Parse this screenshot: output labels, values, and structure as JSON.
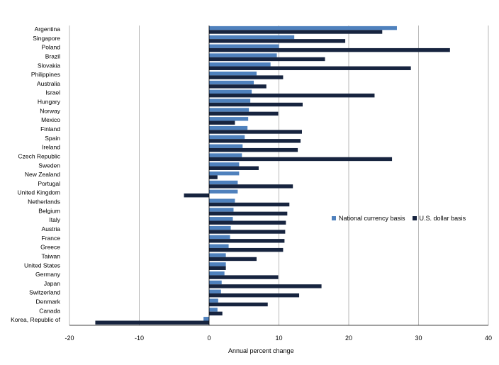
{
  "chart_data": {
    "type": "bar",
    "orientation": "horizontal",
    "categories": [
      "Argentina",
      "Singapore",
      "Poland",
      "Brazil",
      "Slovakia",
      "Philippines",
      "Australia",
      "Israel",
      "Hungary",
      "Norway",
      "Mexico",
      "Finland",
      "Spain",
      "Ireland",
      "Czech Republic",
      "Sweden",
      "New Zealand",
      "Portugal",
      "United Kingdom",
      "Netherlands",
      "Belgium",
      "Italy",
      "Austria",
      "France",
      "Greece",
      "Taiwan",
      "United States",
      "Germany",
      "Japan",
      "Switzerland",
      "Denmark",
      "Canada",
      "Korea, Republic of"
    ],
    "series": [
      {
        "name": "National currency basis",
        "color": "#4f81bd",
        "values": [
          26.9,
          12.2,
          10.0,
          9.7,
          8.8,
          6.8,
          6.4,
          6.1,
          5.9,
          5.7,
          5.6,
          5.5,
          5.1,
          4.8,
          4.7,
          4.3,
          4.3,
          4.1,
          4.1,
          3.7,
          3.5,
          3.4,
          3.1,
          3.0,
          2.8,
          2.4,
          2.4,
          2.2,
          1.8,
          1.7,
          1.3,
          1.2,
          -0.8
        ]
      },
      {
        "name": "U.S. dollar basis",
        "color": "#17243f",
        "values": [
          24.8,
          19.5,
          34.5,
          16.6,
          28.9,
          10.6,
          8.2,
          23.7,
          13.4,
          9.9,
          3.7,
          13.3,
          13.1,
          12.7,
          26.2,
          7.1,
          1.2,
          12.0,
          -3.6,
          11.5,
          11.2,
          11.0,
          10.9,
          10.8,
          10.6,
          6.8,
          2.4,
          9.9,
          16.1,
          12.9,
          8.4,
          1.9,
          -16.3
        ]
      }
    ],
    "xlim": [
      -20,
      40
    ],
    "xticks": [
      "-20",
      "-10",
      "0",
      "10",
      "20",
      "30",
      "40"
    ],
    "xlabel": "Annual percent change",
    "ylabel": "",
    "grid": "vertical",
    "legend_position": "right"
  }
}
